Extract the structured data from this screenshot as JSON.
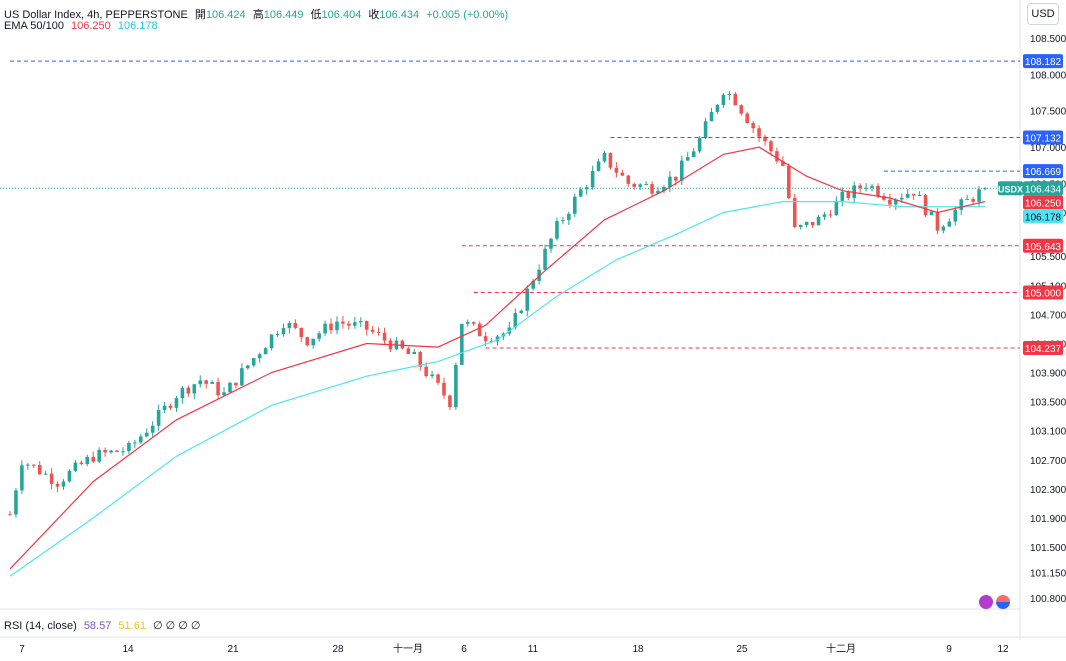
{
  "header": {
    "symbol": "US Dollar Index, 4h, PEPPERSTONE",
    "open_label": "開",
    "open": "106.424",
    "high_label": "高",
    "high": "106.449",
    "low_label": "低",
    "low": "106.404",
    "close_label": "收",
    "close": "106.434",
    "change": "+0.005 (+0.00%)",
    "ema_label": "EMA 50/100",
    "ema50": "106.250",
    "ema100": "106.178",
    "currency": "USD"
  },
  "rsi": {
    "label": "RSI (14, close)",
    "value1": "58.57",
    "value2": "51.61",
    "extra": "∅ ∅ ∅ ∅"
  },
  "colors": {
    "up": "#26a69a",
    "down": "#ef5350",
    "ema50": "#f23645",
    "ema100": "#4ee4f4",
    "resistance": "#2962ff",
    "support": "#f23645",
    "price": "#26a69a"
  },
  "chart_data": {
    "type": "candlestick",
    "title": "US Dollar Index, 4h, PEPPERSTONE",
    "ylim": [
      100.55,
      108.85
    ],
    "y_ticks": [
      "108.500",
      "108.000",
      "107.500",
      "107.000",
      "106.500",
      "106.100",
      "105.500",
      "105.100",
      "104.700",
      "104.300",
      "103.900",
      "103.500",
      "103.100",
      "102.700",
      "102.300",
      "101.900",
      "101.500",
      "101.150",
      "100.800"
    ],
    "x_ticks": [
      "7",
      "14",
      "21",
      "28",
      "十一月",
      "6",
      "11",
      "18",
      "25",
      "十二月",
      "9",
      "12"
    ],
    "anchors": [
      [
        0,
        101.95
      ],
      [
        2,
        102.7
      ],
      [
        8,
        102.4
      ],
      [
        14,
        102.75
      ],
      [
        20,
        102.85
      ],
      [
        25,
        103.3
      ],
      [
        28,
        103.6
      ],
      [
        32,
        103.8
      ],
      [
        36,
        103.6
      ],
      [
        42,
        104.2
      ],
      [
        46,
        104.6
      ],
      [
        50,
        104.35
      ],
      [
        55,
        104.6
      ],
      [
        60,
        104.5
      ],
      [
        64,
        104.3
      ],
      [
        68,
        104.1
      ],
      [
        72,
        103.7
      ],
      [
        74,
        103.5
      ],
      [
        76,
        104.6
      ],
      [
        80,
        104.4
      ],
      [
        84,
        104.45
      ],
      [
        88,
        105.2
      ],
      [
        92,
        105.9
      ],
      [
        96,
        106.4
      ],
      [
        100,
        106.85
      ],
      [
        104,
        106.5
      ],
      [
        108,
        106.45
      ],
      [
        112,
        106.6
      ],
      [
        116,
        107.1
      ],
      [
        120,
        107.8
      ],
      [
        122,
        107.65
      ],
      [
        126,
        107.15
      ],
      [
        130,
        106.75
      ],
      [
        132,
        105.85
      ],
      [
        136,
        106.0
      ],
      [
        140,
        106.3
      ],
      [
        144,
        106.5
      ],
      [
        148,
        106.3
      ],
      [
        152,
        106.4
      ],
      [
        156,
        105.9
      ],
      [
        160,
        106.2
      ],
      [
        164,
        106.43
      ]
    ],
    "candles": [],
    "ema50": [
      [
        0,
        101.2
      ],
      [
        14,
        102.4
      ],
      [
        28,
        103.25
      ],
      [
        44,
        103.9
      ],
      [
        60,
        104.3
      ],
      [
        72,
        104.25
      ],
      [
        80,
        104.55
      ],
      [
        90,
        105.3
      ],
      [
        100,
        106.0
      ],
      [
        110,
        106.4
      ],
      [
        120,
        106.9
      ],
      [
        126,
        107.0
      ],
      [
        134,
        106.6
      ],
      [
        140,
        106.4
      ],
      [
        148,
        106.3
      ],
      [
        156,
        106.1
      ],
      [
        164,
        106.25
      ]
    ],
    "ema100": [
      [
        0,
        101.1
      ],
      [
        14,
        101.9
      ],
      [
        28,
        102.75
      ],
      [
        44,
        103.45
      ],
      [
        60,
        103.85
      ],
      [
        72,
        104.05
      ],
      [
        82,
        104.35
      ],
      [
        92,
        104.95
      ],
      [
        102,
        105.45
      ],
      [
        112,
        105.8
      ],
      [
        120,
        106.1
      ],
      [
        130,
        106.25
      ],
      [
        140,
        106.25
      ],
      [
        150,
        106.18
      ],
      [
        164,
        106.18
      ]
    ],
    "levels": [
      {
        "value": 108.182,
        "label": "108.182",
        "type": "resistance",
        "from": 0
      },
      {
        "value": 107.132,
        "label": "107.132",
        "type": "resistance",
        "from": 101
      },
      {
        "value": 106.669,
        "label": "106.669",
        "type": "resistance",
        "from": 147
      },
      {
        "value": 105.643,
        "label": "105.643",
        "type": "support",
        "from": 76
      },
      {
        "value": 105.0,
        "label": "105.000",
        "type": "support",
        "from": 78
      },
      {
        "value": 104.237,
        "label": "104.237",
        "type": "support",
        "from": 80
      }
    ],
    "price_tag": {
      "label": "USDX",
      "value": "106.434",
      "y": 106.434
    },
    "ema50_tag": {
      "value": "106.250",
      "y": 106.25
    },
    "ema100_tag": {
      "value": "106.178",
      "y": 106.178
    }
  }
}
